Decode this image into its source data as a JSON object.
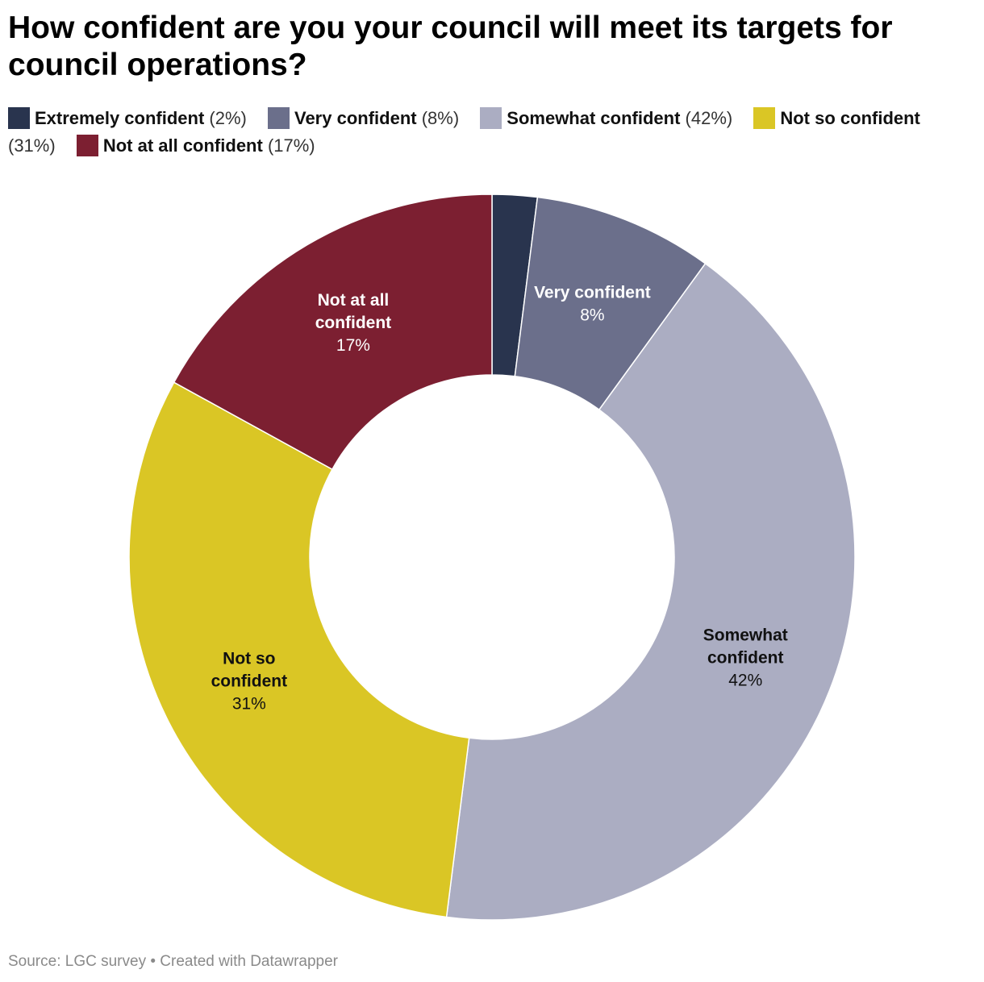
{
  "source": "Source: LGC survey • Created with Datawrapper",
  "chart_data": {
    "type": "pie",
    "title": "How confident are you your council will meet its targets for council operations?",
    "donut": true,
    "legend_position": "top",
    "categories": [
      "Extremely confident",
      "Very confident",
      "Somewhat confident",
      "Not so confident",
      "Not at all confident"
    ],
    "values": [
      2,
      8,
      42,
      31,
      17
    ],
    "value_labels": [
      "(2%)",
      "(8%)",
      "(42%)",
      "(31%)",
      "(17%)"
    ],
    "colors": [
      "#29344e",
      "#6b6f8b",
      "#abadc2",
      "#dac625",
      "#7c1f31"
    ],
    "slice_labels": [
      {
        "lines": [],
        "value": ""
      },
      {
        "lines": [
          "Very confident"
        ],
        "value": "8%"
      },
      {
        "lines": [
          "Somewhat",
          "confident"
        ],
        "value": "42%"
      },
      {
        "lines": [
          "Not so",
          "confident"
        ],
        "value": "31%"
      },
      {
        "lines": [
          "Not at all",
          "confident"
        ],
        "value": "17%"
      }
    ],
    "label_colors": [
      "#ffffff",
      "#ffffff",
      "#111111",
      "#111111",
      "#ffffff"
    ]
  }
}
